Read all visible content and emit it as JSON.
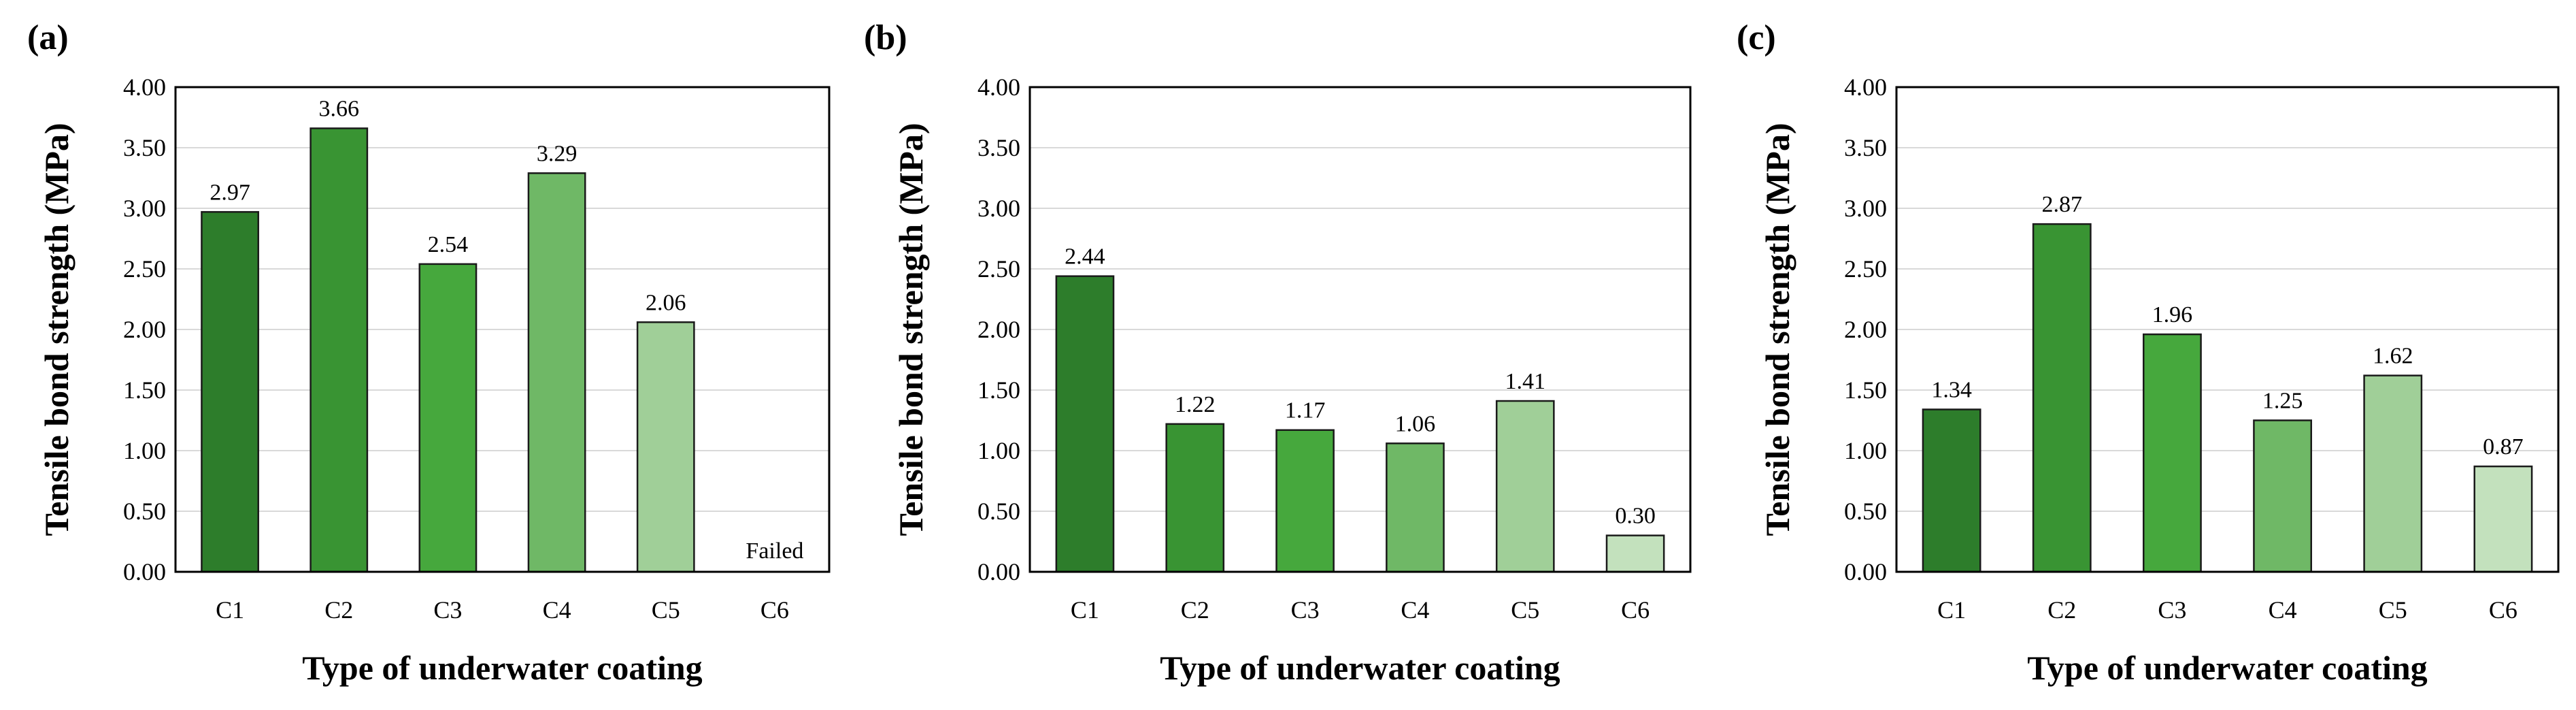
{
  "colors": {
    "C1": "#2d7d2b",
    "C2": "#399433",
    "C3": "#46a83d",
    "C4": "#6fb866",
    "C5": "#a0cf98",
    "C6": "#c3e1bd",
    "grid": "#d9d9d9",
    "frame": "#000000"
  },
  "chart_data": [
    {
      "type": "bar",
      "panel": "(a)",
      "categories": [
        "C1",
        "C2",
        "C3",
        "C4",
        "C5",
        "C6"
      ],
      "values": [
        2.97,
        3.66,
        2.54,
        3.29,
        2.06,
        null
      ],
      "value_labels": [
        "2.97",
        "3.66",
        "2.54",
        "3.29",
        "2.06",
        "Failed"
      ],
      "ylabel": "Tensile bond strength (MPa)",
      "xlabel": "Type of underwater coating",
      "ylim": [
        0,
        4
      ],
      "yticks": [
        "0.00",
        "0.50",
        "1.00",
        "1.50",
        "2.00",
        "2.50",
        "3.00",
        "3.50",
        "4.00"
      ],
      "grid": true
    },
    {
      "type": "bar",
      "panel": "(b)",
      "categories": [
        "C1",
        "C2",
        "C3",
        "C4",
        "C5",
        "C6"
      ],
      "values": [
        2.44,
        1.22,
        1.17,
        1.06,
        1.41,
        0.3
      ],
      "value_labels": [
        "2.44",
        "1.22",
        "1.17",
        "1.06",
        "1.41",
        "0.30"
      ],
      "ylabel": "Tensile bond strength (MPa)",
      "xlabel": "Type of underwater coating",
      "ylim": [
        0,
        4
      ],
      "yticks": [
        "0.00",
        "0.50",
        "1.00",
        "1.50",
        "2.00",
        "2.50",
        "3.00",
        "3.50",
        "4.00"
      ],
      "grid": true
    },
    {
      "type": "bar",
      "panel": "(c)",
      "categories": [
        "C1",
        "C2",
        "C3",
        "C4",
        "C5",
        "C6"
      ],
      "values": [
        1.34,
        2.87,
        1.96,
        1.25,
        1.62,
        0.87
      ],
      "value_labels": [
        "1.34",
        "2.87",
        "1.96",
        "1.25",
        "1.62",
        "0.87"
      ],
      "ylabel": "Tensile bond strength (MPa)",
      "xlabel": "Type of underwater coating",
      "ylim": [
        0,
        4
      ],
      "yticks": [
        "0.00",
        "0.50",
        "1.00",
        "1.50",
        "2.00",
        "2.50",
        "3.00",
        "3.50",
        "4.00"
      ],
      "grid": true
    }
  ]
}
